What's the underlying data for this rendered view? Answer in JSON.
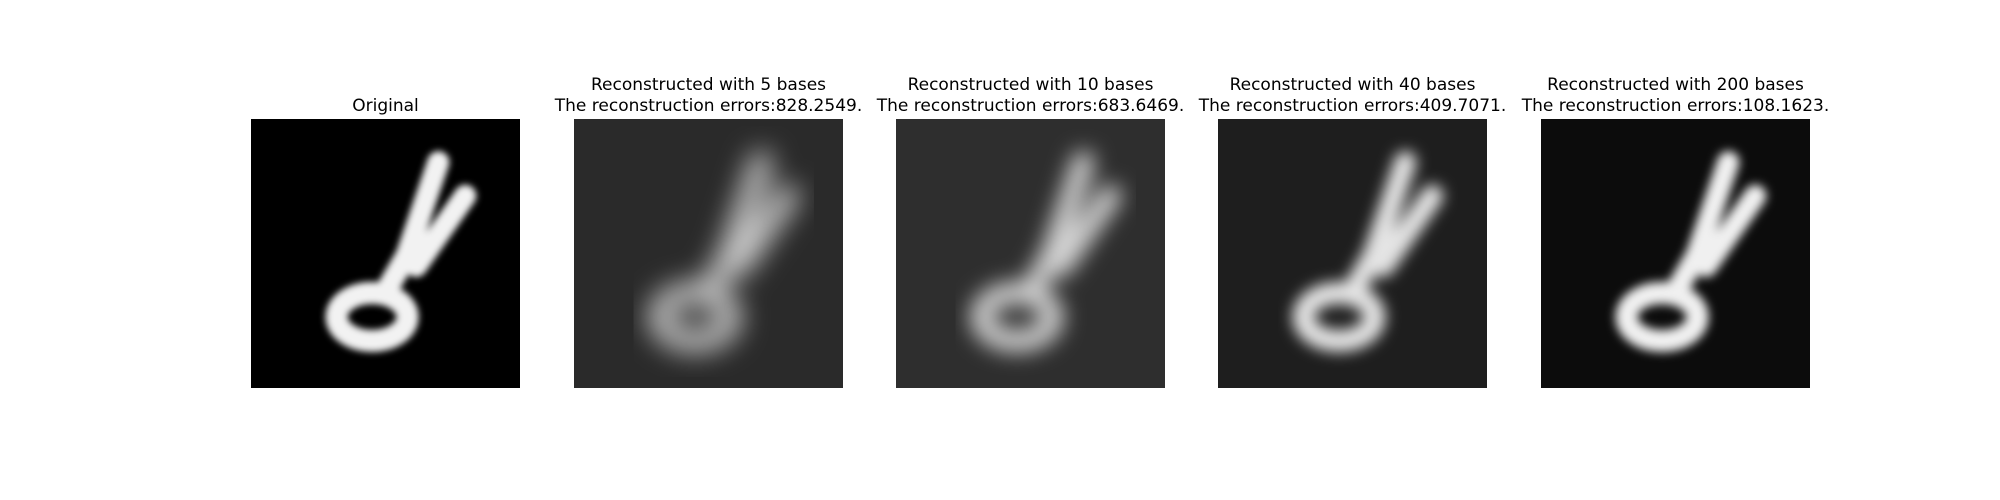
{
  "panels": [
    {
      "title": [
        "Original"
      ]
    },
    {
      "title": [
        "Reconstructed with 5 bases",
        "The reconstruction errors:828.2549."
      ]
    },
    {
      "title": [
        "Reconstructed with 10 bases",
        "The reconstruction errors:683.6469."
      ]
    },
    {
      "title": [
        "Reconstructed with 40 bases",
        "The reconstruction errors:409.7071."
      ]
    },
    {
      "title": [
        "Reconstructed with 200 bases",
        "The reconstruction errors:108.1623."
      ]
    }
  ]
}
